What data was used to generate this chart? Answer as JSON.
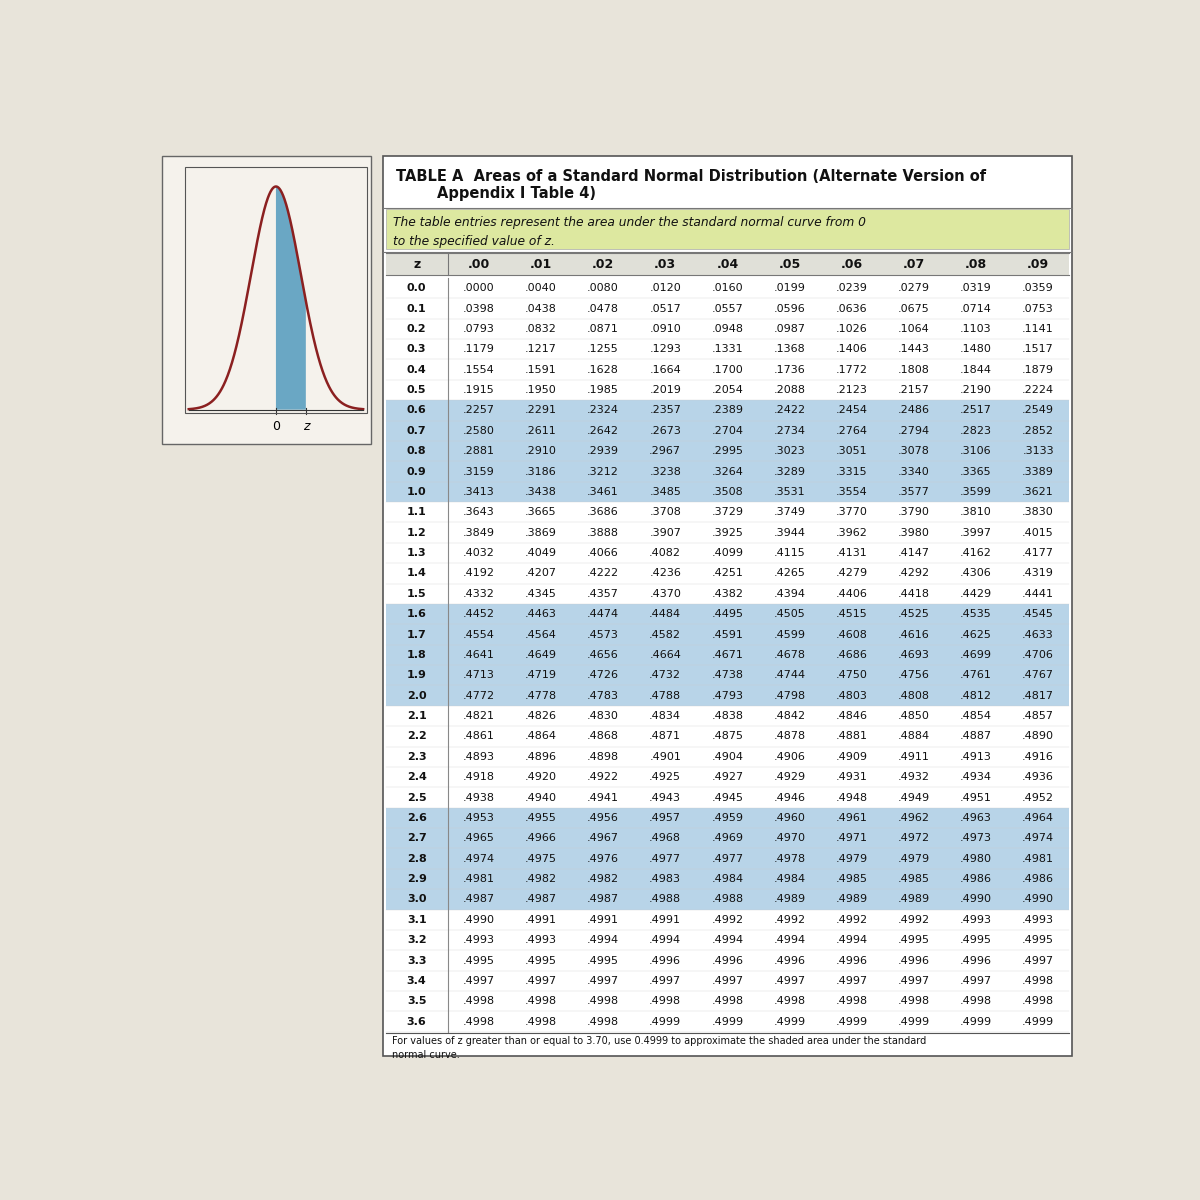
{
  "title_line1": "TABLE A  Areas of a Standard Normal Distribution (Alternate Version of",
  "title_line2": "Appendix I Table 4)",
  "description": "The table entries represent the area under the standard normal curve from 0\nto the specified value of z.",
  "col_headers": [
    "z",
    ".00",
    ".01",
    ".02",
    ".03",
    ".04",
    ".05",
    ".06",
    ".07",
    ".08",
    ".09"
  ],
  "rows": [
    [
      "0.0",
      ".0000",
      ".0040",
      ".0080",
      ".0120",
      ".0160",
      ".0199",
      ".0239",
      ".0279",
      ".0319",
      ".0359"
    ],
    [
      "0.1",
      ".0398",
      ".0438",
      ".0478",
      ".0517",
      ".0557",
      ".0596",
      ".0636",
      ".0675",
      ".0714",
      ".0753"
    ],
    [
      "0.2",
      ".0793",
      ".0832",
      ".0871",
      ".0910",
      ".0948",
      ".0987",
      ".1026",
      ".1064",
      ".1103",
      ".1141"
    ],
    [
      "0.3",
      ".1179",
      ".1217",
      ".1255",
      ".1293",
      ".1331",
      ".1368",
      ".1406",
      ".1443",
      ".1480",
      ".1517"
    ],
    [
      "0.4",
      ".1554",
      ".1591",
      ".1628",
      ".1664",
      ".1700",
      ".1736",
      ".1772",
      ".1808",
      ".1844",
      ".1879"
    ],
    [
      "0.5",
      ".1915",
      ".1950",
      ".1985",
      ".2019",
      ".2054",
      ".2088",
      ".2123",
      ".2157",
      ".2190",
      ".2224"
    ],
    [
      "0.6",
      ".2257",
      ".2291",
      ".2324",
      ".2357",
      ".2389",
      ".2422",
      ".2454",
      ".2486",
      ".2517",
      ".2549"
    ],
    [
      "0.7",
      ".2580",
      ".2611",
      ".2642",
      ".2673",
      ".2704",
      ".2734",
      ".2764",
      ".2794",
      ".2823",
      ".2852"
    ],
    [
      "0.8",
      ".2881",
      ".2910",
      ".2939",
      ".2967",
      ".2995",
      ".3023",
      ".3051",
      ".3078",
      ".3106",
      ".3133"
    ],
    [
      "0.9",
      ".3159",
      ".3186",
      ".3212",
      ".3238",
      ".3264",
      ".3289",
      ".3315",
      ".3340",
      ".3365",
      ".3389"
    ],
    [
      "1.0",
      ".3413",
      ".3438",
      ".3461",
      ".3485",
      ".3508",
      ".3531",
      ".3554",
      ".3577",
      ".3599",
      ".3621"
    ],
    [
      "1.1",
      ".3643",
      ".3665",
      ".3686",
      ".3708",
      ".3729",
      ".3749",
      ".3770",
      ".3790",
      ".3810",
      ".3830"
    ],
    [
      "1.2",
      ".3849",
      ".3869",
      ".3888",
      ".3907",
      ".3925",
      ".3944",
      ".3962",
      ".3980",
      ".3997",
      ".4015"
    ],
    [
      "1.3",
      ".4032",
      ".4049",
      ".4066",
      ".4082",
      ".4099",
      ".4115",
      ".4131",
      ".4147",
      ".4162",
      ".4177"
    ],
    [
      "1.4",
      ".4192",
      ".4207",
      ".4222",
      ".4236",
      ".4251",
      ".4265",
      ".4279",
      ".4292",
      ".4306",
      ".4319"
    ],
    [
      "1.5",
      ".4332",
      ".4345",
      ".4357",
      ".4370",
      ".4382",
      ".4394",
      ".4406",
      ".4418",
      ".4429",
      ".4441"
    ],
    [
      "1.6",
      ".4452",
      ".4463",
      ".4474",
      ".4484",
      ".4495",
      ".4505",
      ".4515",
      ".4525",
      ".4535",
      ".4545"
    ],
    [
      "1.7",
      ".4554",
      ".4564",
      ".4573",
      ".4582",
      ".4591",
      ".4599",
      ".4608",
      ".4616",
      ".4625",
      ".4633"
    ],
    [
      "1.8",
      ".4641",
      ".4649",
      ".4656",
      ".4664",
      ".4671",
      ".4678",
      ".4686",
      ".4693",
      ".4699",
      ".4706"
    ],
    [
      "1.9",
      ".4713",
      ".4719",
      ".4726",
      ".4732",
      ".4738",
      ".4744",
      ".4750",
      ".4756",
      ".4761",
      ".4767"
    ],
    [
      "2.0",
      ".4772",
      ".4778",
      ".4783",
      ".4788",
      ".4793",
      ".4798",
      ".4803",
      ".4808",
      ".4812",
      ".4817"
    ],
    [
      "2.1",
      ".4821",
      ".4826",
      ".4830",
      ".4834",
      ".4838",
      ".4842",
      ".4846",
      ".4850",
      ".4854",
      ".4857"
    ],
    [
      "2.2",
      ".4861",
      ".4864",
      ".4868",
      ".4871",
      ".4875",
      ".4878",
      ".4881",
      ".4884",
      ".4887",
      ".4890"
    ],
    [
      "2.3",
      ".4893",
      ".4896",
      ".4898",
      ".4901",
      ".4904",
      ".4906",
      ".4909",
      ".4911",
      ".4913",
      ".4916"
    ],
    [
      "2.4",
      ".4918",
      ".4920",
      ".4922",
      ".4925",
      ".4927",
      ".4929",
      ".4931",
      ".4932",
      ".4934",
      ".4936"
    ],
    [
      "2.5",
      ".4938",
      ".4940",
      ".4941",
      ".4943",
      ".4945",
      ".4946",
      ".4948",
      ".4949",
      ".4951",
      ".4952"
    ],
    [
      "2.6",
      ".4953",
      ".4955",
      ".4956",
      ".4957",
      ".4959",
      ".4960",
      ".4961",
      ".4962",
      ".4963",
      ".4964"
    ],
    [
      "2.7",
      ".4965",
      ".4966",
      ".4967",
      ".4968",
      ".4969",
      ".4970",
      ".4971",
      ".4972",
      ".4973",
      ".4974"
    ],
    [
      "2.8",
      ".4974",
      ".4975",
      ".4976",
      ".4977",
      ".4977",
      ".4978",
      ".4979",
      ".4979",
      ".4980",
      ".4981"
    ],
    [
      "2.9",
      ".4981",
      ".4982",
      ".4982",
      ".4983",
      ".4984",
      ".4984",
      ".4985",
      ".4985",
      ".4986",
      ".4986"
    ],
    [
      "3.0",
      ".4987",
      ".4987",
      ".4987",
      ".4988",
      ".4988",
      ".4989",
      ".4989",
      ".4989",
      ".4990",
      ".4990"
    ],
    [
      "3.1",
      ".4990",
      ".4991",
      ".4991",
      ".4991",
      ".4992",
      ".4992",
      ".4992",
      ".4992",
      ".4993",
      ".4993"
    ],
    [
      "3.2",
      ".4993",
      ".4993",
      ".4994",
      ".4994",
      ".4994",
      ".4994",
      ".4994",
      ".4995",
      ".4995",
      ".4995"
    ],
    [
      "3.3",
      ".4995",
      ".4995",
      ".4995",
      ".4996",
      ".4996",
      ".4996",
      ".4996",
      ".4996",
      ".4996",
      ".4997"
    ],
    [
      "3.4",
      ".4997",
      ".4997",
      ".4997",
      ".4997",
      ".4997",
      ".4997",
      ".4997",
      ".4997",
      ".4997",
      ".4998"
    ],
    [
      "3.5",
      ".4998",
      ".4998",
      ".4998",
      ".4998",
      ".4998",
      ".4998",
      ".4998",
      ".4998",
      ".4998",
      ".4998"
    ],
    [
      "3.6",
      ".4998",
      ".4998",
      ".4998",
      ".4999",
      ".4999",
      ".4999",
      ".4999",
      ".4999",
      ".4999",
      ".4999"
    ]
  ],
  "highlighted_rows": [
    6,
    7,
    8,
    9,
    10,
    16,
    17,
    18,
    19,
    20,
    26,
    27,
    28,
    29,
    30
  ],
  "footer": "For values of z greater than or equal to 3.70, use 0.4999 to approximate the shaded area under the standard\nnormal curve.",
  "page_bg": "#e8e4da",
  "panel_bg": "#f5f2ec",
  "table_bg": "white",
  "highlight_color": "#b8d4e8",
  "desc_bg": "#dde8a0",
  "title_color": "#111111",
  "text_color": "#111111",
  "header_sep_color": "#999999"
}
